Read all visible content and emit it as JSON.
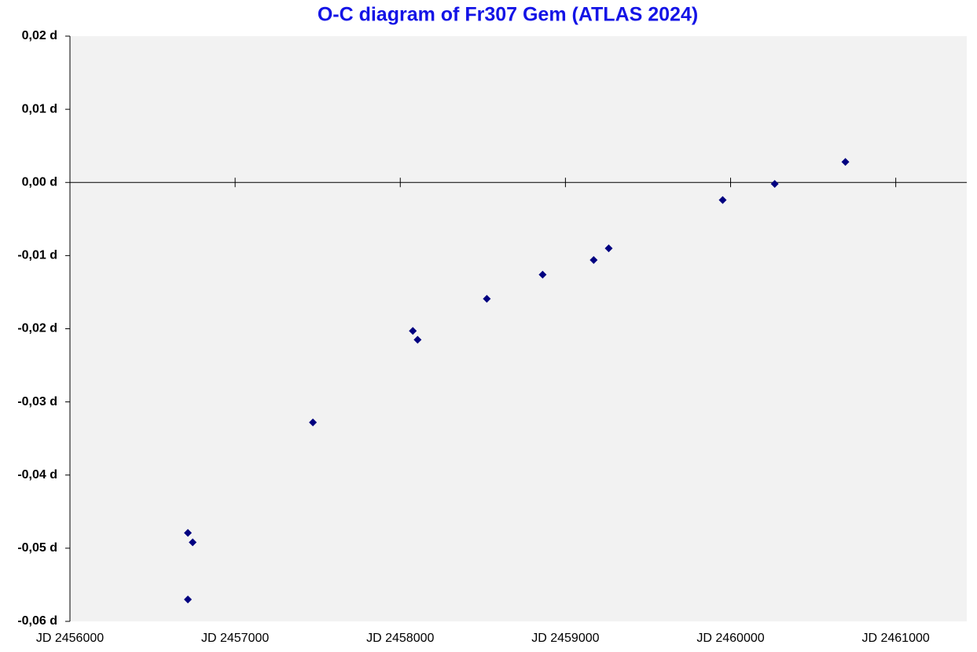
{
  "chart_data": {
    "type": "scatter",
    "title": "O-C diagram of Fr307 Gem (ATLAS 2024)",
    "series": [
      {
        "color": "#000080",
        "x": [
          2456714,
          2456743,
          2456714,
          2457471,
          2458076,
          2458105,
          2458524,
          2458862,
          2459171,
          2459262,
          2459952,
          2460267,
          2460695
        ],
        "values": [
          -0.0479,
          -0.0492,
          -0.057,
          -0.0328,
          -0.0203,
          -0.0215,
          -0.0159,
          -0.0126,
          -0.0106,
          -0.009,
          -0.0024,
          -0.0002,
          0.0028
        ]
      }
    ],
    "xlim": [
      2456000,
      2461430
    ],
    "ylim": [
      -0.06,
      0.02
    ],
    "xticks": [
      {
        "value": 2456000,
        "label": "JD 2456000"
      },
      {
        "value": 2457000,
        "label": "JD 2457000"
      },
      {
        "value": 2458000,
        "label": "JD 2458000"
      },
      {
        "value": 2459000,
        "label": "JD 2459000"
      },
      {
        "value": 2460000,
        "label": "JD 2460000"
      },
      {
        "value": 2461000,
        "label": "JD 2461000"
      }
    ],
    "yticks": [
      {
        "value": 0.02,
        "label": "0,02 d"
      },
      {
        "value": 0.01,
        "label": "0,01 d"
      },
      {
        "value": 0,
        "label": "0,00 d"
      },
      {
        "value": -0.01,
        "label": "-0,01 d"
      },
      {
        "value": -0.02,
        "label": "-0,02 d"
      },
      {
        "value": -0.03,
        "label": "-0,03 d"
      },
      {
        "value": -0.04,
        "label": "-0,04 d"
      },
      {
        "value": -0.05,
        "label": "-0,05 d"
      },
      {
        "value": -0.06,
        "label": "-0,06 d"
      }
    ]
  }
}
